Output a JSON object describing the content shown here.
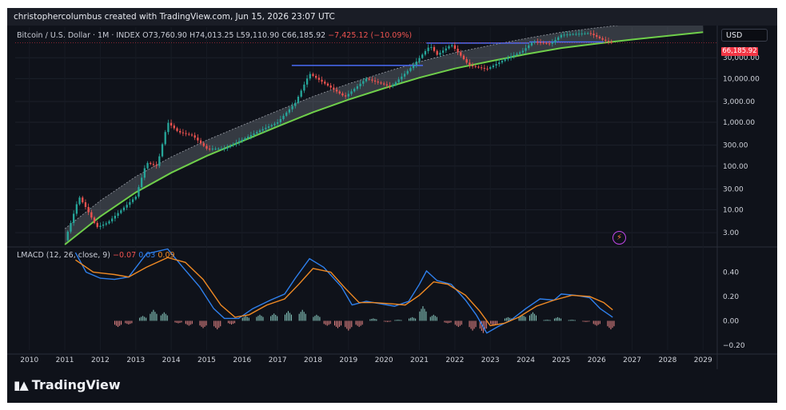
{
  "header": {
    "text": "christophercolumbus created with TradingView.com, Jun 15, 2026 23:07 UTC"
  },
  "legend": {
    "symbol": "Bitcoin / U.S. Dollar · 1M · INDEX",
    "open": "O73,760.90",
    "high": "H74,013.25",
    "low": "L59,110.90",
    "close": "C66,185.92",
    "change": "−7,425.12 (−10.09%)"
  },
  "currency_button": {
    "label": "USD"
  },
  "last_price_label": "66,185.92",
  "indicator_legend": {
    "name": "LMACD (12, 26, close, 9)",
    "hist": "−0.07",
    "macd": "0.03",
    "signal": "0.09"
  },
  "footer": {
    "logo_text": "TradingView"
  },
  "colors": {
    "background": "#0f121a",
    "bull": "#26a69a",
    "bear": "#ef5350",
    "regression": "#6fcf4a",
    "macd_line": "#2f80ed",
    "signal_line": "#f08a24",
    "level_line": "#4a6cf7",
    "price_tag": "#f23645"
  },
  "chart_data": [
    {
      "type": "candlestick",
      "title": "Bitcoin / U.S. Dollar · 1M · INDEX",
      "scale": "log",
      "y_ticks": [
        "3.00",
        "10.00",
        "30.00",
        "100.00",
        "300.00",
        "1,000.00",
        "3,000.00",
        "10,000.00",
        "30,000.00"
      ],
      "y_tick_values": [
        3,
        10,
        30,
        100,
        300,
        1000,
        3000,
        10000,
        30000
      ],
      "x_ticks": [
        "2010",
        "2011",
        "2012",
        "2013",
        "2014",
        "2015",
        "2016",
        "2017",
        "2018",
        "2019",
        "2020",
        "2021",
        "2022",
        "2023",
        "2024",
        "2025",
        "2026",
        "2027",
        "2028",
        "2029"
      ],
      "x_range": [
        2009.6,
        2029.4
      ],
      "y_range": [
        1.6,
        150000
      ],
      "last_price": 66185.92,
      "price_series_approx": [
        [
          2011.0,
          2
        ],
        [
          2011.2,
          6
        ],
        [
          2011.4,
          20
        ],
        [
          2011.6,
          11
        ],
        [
          2011.9,
          4
        ],
        [
          2012.2,
          5
        ],
        [
          2012.6,
          10
        ],
        [
          2013.0,
          20
        ],
        [
          2013.3,
          120
        ],
        [
          2013.6,
          100
        ],
        [
          2013.9,
          1000
        ],
        [
          2014.2,
          600
        ],
        [
          2014.6,
          500
        ],
        [
          2015.0,
          250
        ],
        [
          2015.5,
          250
        ],
        [
          2016.0,
          400
        ],
        [
          2016.5,
          650
        ],
        [
          2017.0,
          1000
        ],
        [
          2017.5,
          2800
        ],
        [
          2017.9,
          13000
        ],
        [
          2018.3,
          8000
        ],
        [
          2018.9,
          3800
        ],
        [
          2019.5,
          10000
        ],
        [
          2020.2,
          6500
        ],
        [
          2020.8,
          19000
        ],
        [
          2021.3,
          57000
        ],
        [
          2021.5,
          35000
        ],
        [
          2021.9,
          60000
        ],
        [
          2022.4,
          20000
        ],
        [
          2022.9,
          16500
        ],
        [
          2023.5,
          30000
        ],
        [
          2023.9,
          42000
        ],
        [
          2024.2,
          70000
        ],
        [
          2024.7,
          62000
        ],
        [
          2025.0,
          100000
        ],
        [
          2025.4,
          105000
        ],
        [
          2025.8,
          110000
        ],
        [
          2026.2,
          75000
        ],
        [
          2026.45,
          66185.92
        ]
      ],
      "regression_band_approx": [
        [
          2011.0,
          1.6
        ],
        [
          2012,
          7
        ],
        [
          2013,
          25
        ],
        [
          2014,
          70
        ],
        [
          2015,
          170
        ],
        [
          2016,
          370
        ],
        [
          2017,
          800
        ],
        [
          2018,
          1700
        ],
        [
          2019,
          3300
        ],
        [
          2020,
          6000
        ],
        [
          2021,
          10500
        ],
        [
          2022,
          17000
        ],
        [
          2023,
          25000
        ],
        [
          2024,
          36000
        ],
        [
          2025,
          50000
        ],
        [
          2026,
          63000
        ],
        [
          2027,
          78000
        ],
        [
          2028,
          95000
        ],
        [
          2029,
          115000
        ]
      ],
      "horizontal_levels": [
        {
          "from": 2017.4,
          "to": 2021.1,
          "value": 20000
        },
        {
          "from": 2021.2,
          "to": 2024.1,
          "value": 65000
        },
        {
          "from": 2024.1,
          "to": 2026.2,
          "value": 69000
        }
      ]
    },
    {
      "type": "line",
      "title": "LMACD (12, 26, close, 9)",
      "y_ticks": [
        "0.40",
        "0.20",
        "0.00",
        "−0.20"
      ],
      "y_tick_values": [
        0.4,
        0.2,
        0.0,
        -0.2
      ],
      "y_range": [
        -0.24,
        0.6
      ],
      "series": [
        {
          "name": "macd",
          "points": [
            [
              2011.3,
              0.56
            ],
            [
              2011.6,
              0.4
            ],
            [
              2012.0,
              0.35
            ],
            [
              2012.4,
              0.34
            ],
            [
              2012.8,
              0.36
            ],
            [
              2013.3,
              0.55
            ],
            [
              2013.9,
              0.59
            ],
            [
              2014.3,
              0.45
            ],
            [
              2014.8,
              0.28
            ],
            [
              2015.2,
              0.1
            ],
            [
              2015.5,
              0.02
            ],
            [
              2015.9,
              0.02
            ],
            [
              2016.3,
              0.1
            ],
            [
              2016.8,
              0.17
            ],
            [
              2017.2,
              0.22
            ],
            [
              2017.5,
              0.35
            ],
            [
              2017.9,
              0.51
            ],
            [
              2018.3,
              0.44
            ],
            [
              2018.8,
              0.28
            ],
            [
              2019.1,
              0.13
            ],
            [
              2019.5,
              0.16
            ],
            [
              2019.9,
              0.14
            ],
            [
              2020.3,
              0.12
            ],
            [
              2020.7,
              0.16
            ],
            [
              2021.0,
              0.3
            ],
            [
              2021.2,
              0.41
            ],
            [
              2021.5,
              0.33
            ],
            [
              2021.9,
              0.3
            ],
            [
              2022.3,
              0.17
            ],
            [
              2022.6,
              0.05
            ],
            [
              2022.9,
              -0.1
            ],
            [
              2023.2,
              -0.05
            ],
            [
              2023.6,
              0.01
            ],
            [
              2024.0,
              0.1
            ],
            [
              2024.4,
              0.18
            ],
            [
              2024.8,
              0.17
            ],
            [
              2025.0,
              0.22
            ],
            [
              2025.4,
              0.21
            ],
            [
              2025.8,
              0.19
            ],
            [
              2026.1,
              0.1
            ],
            [
              2026.45,
              0.03
            ]
          ]
        },
        {
          "name": "signal",
          "points": [
            [
              2011.3,
              0.5
            ],
            [
              2011.8,
              0.4
            ],
            [
              2012.4,
              0.38
            ],
            [
              2012.8,
              0.36
            ],
            [
              2013.3,
              0.44
            ],
            [
              2013.9,
              0.52
            ],
            [
              2014.4,
              0.48
            ],
            [
              2014.9,
              0.34
            ],
            [
              2015.4,
              0.13
            ],
            [
              2015.8,
              0.03
            ],
            [
              2016.2,
              0.05
            ],
            [
              2016.7,
              0.13
            ],
            [
              2017.2,
              0.18
            ],
            [
              2017.6,
              0.3
            ],
            [
              2018.0,
              0.43
            ],
            [
              2018.5,
              0.4
            ],
            [
              2018.9,
              0.27
            ],
            [
              2019.3,
              0.15
            ],
            [
              2019.7,
              0.15
            ],
            [
              2020.2,
              0.14
            ],
            [
              2020.6,
              0.13
            ],
            [
              2021.0,
              0.21
            ],
            [
              2021.4,
              0.32
            ],
            [
              2021.8,
              0.3
            ],
            [
              2022.3,
              0.21
            ],
            [
              2022.7,
              0.08
            ],
            [
              2023.0,
              -0.04
            ],
            [
              2023.4,
              -0.02
            ],
            [
              2023.8,
              0.03
            ],
            [
              2024.3,
              0.12
            ],
            [
              2024.8,
              0.17
            ],
            [
              2025.3,
              0.21
            ],
            [
              2025.8,
              0.2
            ],
            [
              2026.2,
              0.15
            ],
            [
              2026.45,
              0.09
            ]
          ]
        }
      ],
      "histogram": [
        [
          2012.5,
          -0.05
        ],
        [
          2012.8,
          -0.03
        ],
        [
          2013.2,
          0.04
        ],
        [
          2013.5,
          0.09
        ],
        [
          2013.8,
          0.07
        ],
        [
          2014.2,
          -0.02
        ],
        [
          2014.5,
          -0.04
        ],
        [
          2014.9,
          -0.06
        ],
        [
          2015.3,
          -0.07
        ],
        [
          2015.7,
          -0.03
        ],
        [
          2016.1,
          0.04
        ],
        [
          2016.5,
          0.05
        ],
        [
          2016.9,
          0.06
        ],
        [
          2017.3,
          0.08
        ],
        [
          2017.7,
          0.09
        ],
        [
          2018.1,
          0.05
        ],
        [
          2018.4,
          -0.04
        ],
        [
          2018.7,
          -0.06
        ],
        [
          2019.0,
          -0.08
        ],
        [
          2019.3,
          -0.05
        ],
        [
          2019.7,
          0.02
        ],
        [
          2020.1,
          -0.01
        ],
        [
          2020.4,
          0.01
        ],
        [
          2020.8,
          0.03
        ],
        [
          2021.1,
          0.12
        ],
        [
          2021.4,
          0.05
        ],
        [
          2021.8,
          -0.02
        ],
        [
          2022.1,
          -0.05
        ],
        [
          2022.5,
          -0.08
        ],
        [
          2022.8,
          -0.1
        ],
        [
          2023.1,
          -0.04
        ],
        [
          2023.5,
          0.03
        ],
        [
          2023.9,
          0.05
        ],
        [
          2024.2,
          0.07
        ],
        [
          2024.6,
          0.01
        ],
        [
          2024.9,
          0.03
        ],
        [
          2025.3,
          0.01
        ],
        [
          2025.7,
          -0.01
        ],
        [
          2026.0,
          -0.04
        ],
        [
          2026.4,
          -0.07
        ]
      ]
    }
  ]
}
